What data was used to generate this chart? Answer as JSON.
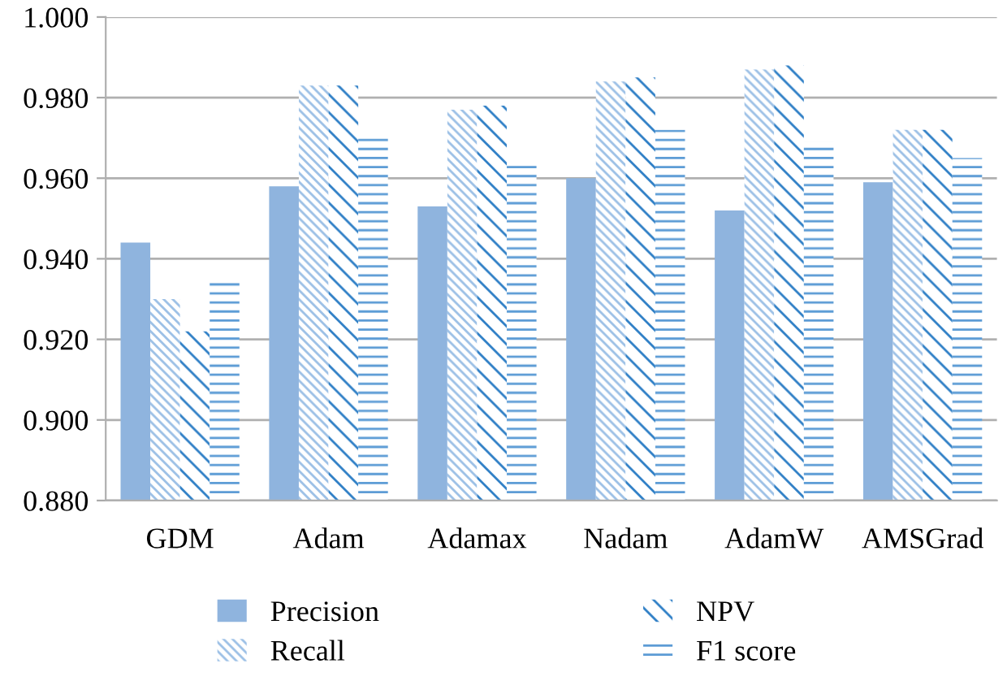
{
  "chart_data": {
    "type": "bar",
    "categories": [
      "GDM",
      "Adam",
      "Adamax",
      "Nadam",
      "AdamW",
      "AMSGrad"
    ],
    "series": [
      {
        "name": "Precision",
        "color": "#8fb4de",
        "values": [
          0.944,
          0.958,
          0.953,
          0.96,
          0.952,
          0.959
        ]
      },
      {
        "name": "Recall",
        "color": "#9cc0e6",
        "values": [
          0.93,
          0.983,
          0.977,
          0.984,
          0.987,
          0.972
        ]
      },
      {
        "name": "NPV",
        "color": "#2f7fc6",
        "values": [
          0.922,
          0.983,
          0.978,
          0.985,
          0.988,
          0.972
        ]
      },
      {
        "name": "F1 score",
        "color": "#5b9bd5",
        "values": [
          0.935,
          0.971,
          0.964,
          0.972,
          0.969,
          0.965
        ]
      }
    ],
    "ylim": [
      0.88,
      1.0
    ],
    "yticks": [
      {
        "value": 0.88,
        "label": "0.880"
      },
      {
        "value": 0.9,
        "label": "0.900"
      },
      {
        "value": 0.92,
        "label": "0.920"
      },
      {
        "value": 0.94,
        "label": "0.940"
      },
      {
        "value": 0.96,
        "label": "0.960"
      },
      {
        "value": 0.98,
        "label": "0.980"
      },
      {
        "value": 1.0,
        "label": "1.000"
      }
    ],
    "grid": "y",
    "legend": "bottom"
  }
}
